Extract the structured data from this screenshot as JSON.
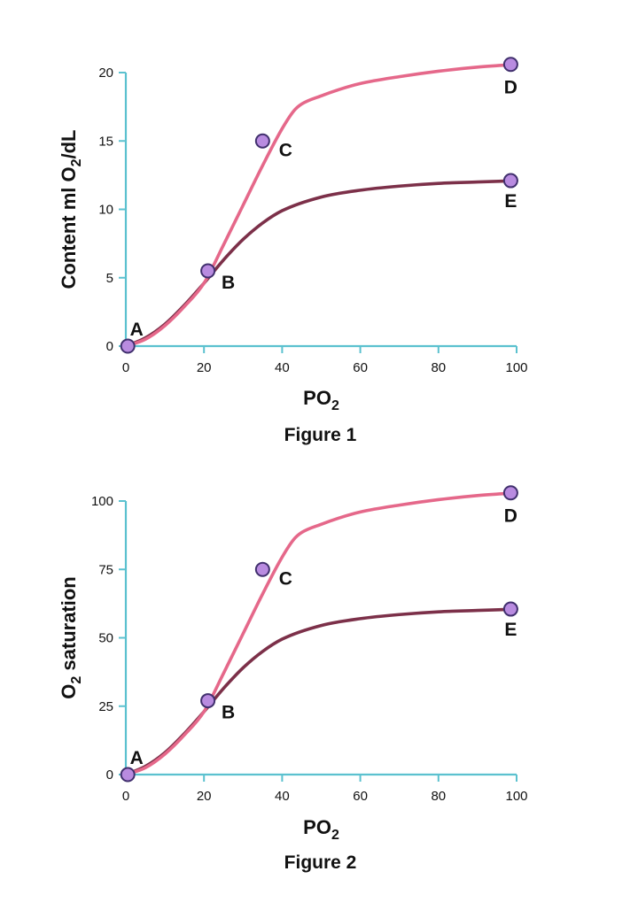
{
  "colors": {
    "axis": "#5bc1cf",
    "curve_upper": "#e5688a",
    "curve_lower": "#7c3049",
    "point_fill": "#b98be0",
    "point_stroke": "#41306e"
  },
  "chart_data": [
    {
      "type": "line",
      "caption": "Figure 1",
      "xlabel": {
        "main": "PO",
        "sub": "2"
      },
      "ylabel": {
        "pre": "Content ml O",
        "sub": "2",
        "post": "/dL"
      },
      "xlim": [
        0,
        100
      ],
      "ylim": [
        0,
        20
      ],
      "xticks": [
        0,
        20,
        40,
        60,
        80,
        100
      ],
      "yticks": [
        0,
        5,
        10,
        15,
        20
      ],
      "series": [
        {
          "role": "upper",
          "x": [
            0,
            5,
            10,
            15,
            20,
            25,
            30,
            35,
            40,
            43,
            45,
            50,
            55,
            60,
            70,
            80,
            90,
            100
          ],
          "y": [
            0,
            0.5,
            1.5,
            2.9,
            4.6,
            7.4,
            10.3,
            13.2,
            15.9,
            17.2,
            17.7,
            18.3,
            18.8,
            19.2,
            19.7,
            20.1,
            20.4,
            20.6
          ]
        },
        {
          "role": "lower",
          "x": [
            0,
            5,
            10,
            15,
            20,
            25,
            30,
            35,
            40,
            50,
            60,
            70,
            80,
            90,
            100
          ],
          "y": [
            0,
            0.6,
            1.6,
            3.0,
            4.6,
            6.3,
            7.8,
            9.0,
            9.9,
            10.9,
            11.4,
            11.7,
            11.9,
            12.0,
            12.1
          ]
        }
      ],
      "points": [
        {
          "label": "A",
          "x": 0.5,
          "y": 0
        },
        {
          "label": "B",
          "x": 21,
          "y": 5.5
        },
        {
          "label": "C",
          "x": 35,
          "y": 15
        },
        {
          "label": "D",
          "x": 98.5,
          "y": 20.6
        },
        {
          "label": "E",
          "x": 98.5,
          "y": 12.1
        }
      ]
    },
    {
      "type": "line",
      "caption": "Figure 2",
      "xlabel": {
        "main": "PO",
        "sub": "2"
      },
      "ylabel": {
        "pre": "O",
        "sub": "2",
        "post": " saturation"
      },
      "xlim": [
        0,
        100
      ],
      "ylim": [
        0,
        100
      ],
      "xticks": [
        0,
        20,
        40,
        60,
        80,
        100
      ],
      "yticks": [
        0,
        25,
        50,
        75,
        100
      ],
      "series": [
        {
          "role": "upper",
          "x": [
            0,
            5,
            10,
            15,
            20,
            25,
            30,
            35,
            40,
            43,
            45,
            50,
            55,
            60,
            70,
            80,
            90,
            100
          ],
          "y": [
            0,
            2.5,
            7.5,
            14.5,
            23,
            37,
            51.5,
            66,
            79.5,
            86,
            88.5,
            91.5,
            94,
            96,
            98.5,
            100.5,
            102,
            103
          ]
        },
        {
          "role": "lower",
          "x": [
            0,
            5,
            10,
            15,
            20,
            25,
            30,
            35,
            40,
            50,
            60,
            70,
            80,
            90,
            100
          ],
          "y": [
            0,
            3,
            8,
            15,
            23,
            31.5,
            39,
            45,
            49.5,
            54.5,
            57,
            58.5,
            59.5,
            60,
            60.5
          ]
        }
      ],
      "points": [
        {
          "label": "A",
          "x": 0.5,
          "y": 0
        },
        {
          "label": "B",
          "x": 21,
          "y": 27
        },
        {
          "label": "C",
          "x": 35,
          "y": 75
        },
        {
          "label": "D",
          "x": 98.5,
          "y": 103
        },
        {
          "label": "E",
          "x": 98.5,
          "y": 60.5
        }
      ]
    }
  ]
}
